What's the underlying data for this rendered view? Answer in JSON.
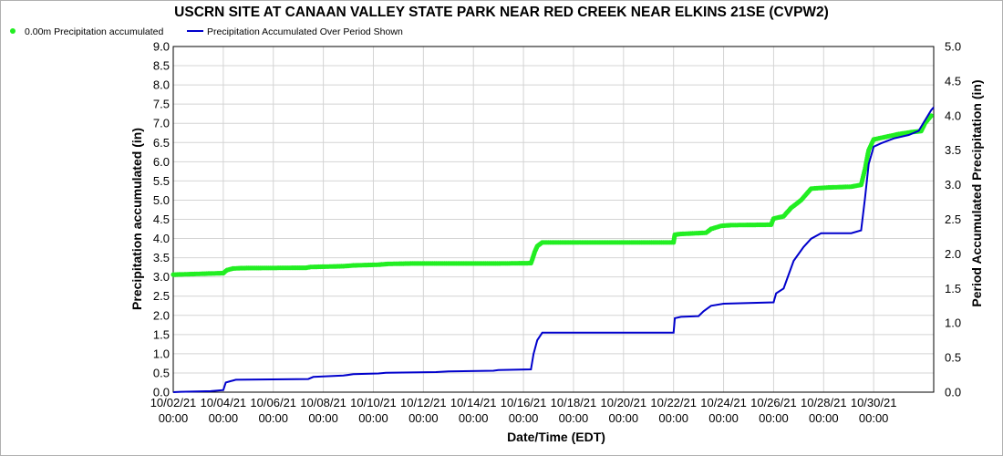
{
  "chart_data": {
    "type": "line",
    "title": "USCRN SITE AT CANAAN VALLEY STATE PARK NEAR RED CREEK NEAR ELKINS 21SE (CVPW2)",
    "xlabel": "Date/Time (EDT)",
    "ylabel_left": "Precipitation accumulated (in)",
    "ylabel_right": "Period Accumulated Precipitation (in)",
    "x_range_days": [
      0,
      30.4
    ],
    "x_ticks": [
      {
        "day": 0,
        "date": "10/02/21",
        "time": "00:00"
      },
      {
        "day": 2,
        "date": "10/04/21",
        "time": "00:00"
      },
      {
        "day": 4,
        "date": "10/06/21",
        "time": "00:00"
      },
      {
        "day": 6,
        "date": "10/08/21",
        "time": "00:00"
      },
      {
        "day": 8,
        "date": "10/10/21",
        "time": "00:00"
      },
      {
        "day": 10,
        "date": "10/12/21",
        "time": "00:00"
      },
      {
        "day": 12,
        "date": "10/14/21",
        "time": "00:00"
      },
      {
        "day": 14,
        "date": "10/16/21",
        "time": "00:00"
      },
      {
        "day": 16,
        "date": "10/18/21",
        "time": "00:00"
      },
      {
        "day": 18,
        "date": "10/20/21",
        "time": "00:00"
      },
      {
        "day": 20,
        "date": "10/22/21",
        "time": "00:00"
      },
      {
        "day": 22,
        "date": "10/24/21",
        "time": "00:00"
      },
      {
        "day": 24,
        "date": "10/26/21",
        "time": "00:00"
      },
      {
        "day": 26,
        "date": "10/28/21",
        "time": "00:00"
      },
      {
        "day": 28,
        "date": "10/30/21",
        "time": "00:00"
      }
    ],
    "y_left": {
      "min": 0,
      "max": 9,
      "ticks": [
        "0.0",
        "0.5",
        "1.0",
        "1.5",
        "2.0",
        "2.5",
        "3.0",
        "3.5",
        "4.0",
        "4.5",
        "5.0",
        "5.5",
        "6.0",
        "6.5",
        "7.0",
        "7.5",
        "8.0",
        "8.5",
        "9.0"
      ]
    },
    "y_right": {
      "min": 0,
      "max": 5,
      "ticks": [
        "0.0",
        "0.5",
        "1.0",
        "1.5",
        "2.0",
        "2.5",
        "3.0",
        "3.5",
        "4.0",
        "4.5",
        "5.0"
      ]
    },
    "grid": true,
    "legend_position": "top-left",
    "series": [
      {
        "name": "0.00m Precipitation accumulated",
        "axis": "left",
        "style": "dots",
        "color": "#22ee22",
        "points": [
          [
            0,
            3.06
          ],
          [
            1.5,
            3.09
          ],
          [
            2.0,
            3.1
          ],
          [
            2.15,
            3.18
          ],
          [
            2.4,
            3.22
          ],
          [
            2.7,
            3.23
          ],
          [
            5.3,
            3.24
          ],
          [
            5.5,
            3.26
          ],
          [
            6.8,
            3.28
          ],
          [
            7.2,
            3.3
          ],
          [
            8.2,
            3.32
          ],
          [
            8.6,
            3.34
          ],
          [
            9.5,
            3.35
          ],
          [
            12.8,
            3.35
          ],
          [
            14.3,
            3.36
          ],
          [
            14.35,
            3.45
          ],
          [
            14.45,
            3.65
          ],
          [
            14.55,
            3.8
          ],
          [
            14.75,
            3.9
          ],
          [
            20.0,
            3.9
          ],
          [
            20.05,
            4.1
          ],
          [
            20.3,
            4.12
          ],
          [
            21.3,
            4.15
          ],
          [
            21.5,
            4.25
          ],
          [
            21.9,
            4.33
          ],
          [
            22.3,
            4.35
          ],
          [
            23.9,
            4.36
          ],
          [
            24.0,
            4.52
          ],
          [
            24.4,
            4.58
          ],
          [
            24.7,
            4.8
          ],
          [
            25.1,
            5.0
          ],
          [
            25.5,
            5.3
          ],
          [
            26.2,
            5.33
          ],
          [
            27.1,
            5.35
          ],
          [
            27.5,
            5.4
          ],
          [
            27.65,
            5.8
          ],
          [
            27.8,
            6.3
          ],
          [
            28.0,
            6.58
          ],
          [
            28.5,
            6.65
          ],
          [
            29.0,
            6.72
          ],
          [
            29.5,
            6.77
          ],
          [
            29.9,
            6.8
          ],
          [
            30.05,
            7.0
          ],
          [
            30.3,
            7.2
          ]
        ]
      },
      {
        "name": "Precipitation Accumulated Over Period Shown",
        "axis": "right",
        "style": "line",
        "color": "#0000cc",
        "points": [
          [
            0,
            0.0
          ],
          [
            0.3,
            0.005
          ],
          [
            1.5,
            0.015
          ],
          [
            2.0,
            0.03
          ],
          [
            2.1,
            0.14
          ],
          [
            2.3,
            0.16
          ],
          [
            2.5,
            0.18
          ],
          [
            5.4,
            0.19
          ],
          [
            5.6,
            0.22
          ],
          [
            6.8,
            0.24
          ],
          [
            7.2,
            0.26
          ],
          [
            8.2,
            0.27
          ],
          [
            8.5,
            0.28
          ],
          [
            10.5,
            0.29
          ],
          [
            11.0,
            0.3
          ],
          [
            12.8,
            0.31
          ],
          [
            13.0,
            0.32
          ],
          [
            14.3,
            0.33
          ],
          [
            14.4,
            0.55
          ],
          [
            14.55,
            0.75
          ],
          [
            14.75,
            0.86
          ],
          [
            20.0,
            0.86
          ],
          [
            20.05,
            1.07
          ],
          [
            20.3,
            1.09
          ],
          [
            21.0,
            1.1
          ],
          [
            21.2,
            1.17
          ],
          [
            21.5,
            1.25
          ],
          [
            22.0,
            1.28
          ],
          [
            24.0,
            1.3
          ],
          [
            24.1,
            1.43
          ],
          [
            24.4,
            1.5
          ],
          [
            24.6,
            1.7
          ],
          [
            24.8,
            1.9
          ],
          [
            25.2,
            2.1
          ],
          [
            25.5,
            2.22
          ],
          [
            25.9,
            2.3
          ],
          [
            27.1,
            2.3
          ],
          [
            27.5,
            2.34
          ],
          [
            27.65,
            2.8
          ],
          [
            27.8,
            3.3
          ],
          [
            28.0,
            3.55
          ],
          [
            28.3,
            3.6
          ],
          [
            28.8,
            3.67
          ],
          [
            29.4,
            3.72
          ],
          [
            29.8,
            3.78
          ],
          [
            30.0,
            3.9
          ],
          [
            30.3,
            4.08
          ],
          [
            30.4,
            4.12
          ]
        ]
      }
    ]
  }
}
